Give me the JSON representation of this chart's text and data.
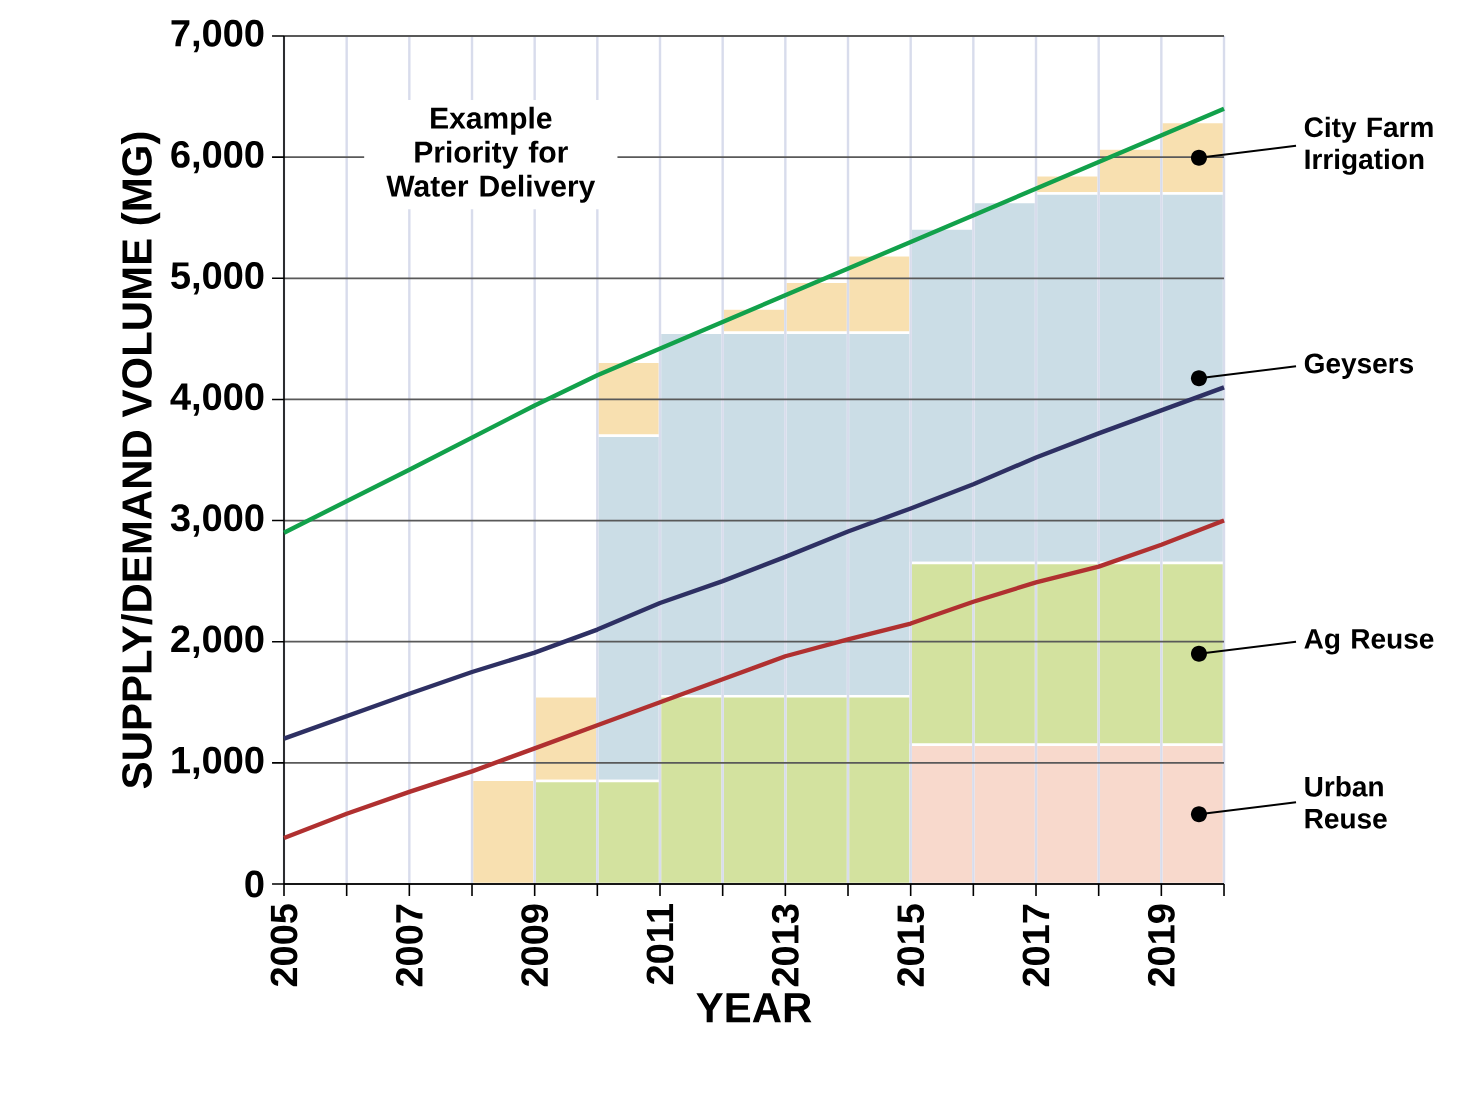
{
  "chart_data": {
    "type": "bar",
    "stacked": true,
    "xlabel": "YEAR",
    "ylabel": "SUPPLY/DEMAND VOLUME (MG)",
    "grid": true,
    "xlim": [
      2005,
      2020
    ],
    "xticks": [
      {
        "value": 2005,
        "label": "2005"
      },
      {
        "value": 2006,
        "label": null
      },
      {
        "value": 2007,
        "label": "2007"
      },
      {
        "value": 2008,
        "label": null
      },
      {
        "value": 2009,
        "label": "2009"
      },
      {
        "value": 2010,
        "label": null
      },
      {
        "value": 2011,
        "label": "2011"
      },
      {
        "value": 2012,
        "label": null
      },
      {
        "value": 2013,
        "label": "2013"
      },
      {
        "value": 2014,
        "label": null
      },
      {
        "value": 2015,
        "label": "2015"
      },
      {
        "value": 2016,
        "label": null
      },
      {
        "value": 2017,
        "label": "2017"
      },
      {
        "value": 2018,
        "label": null
      },
      {
        "value": 2019,
        "label": "2019"
      },
      {
        "value": 2020,
        "label": null
      }
    ],
    "ylim": [
      0,
      7000
    ],
    "yticks": [
      {
        "value": 0,
        "label": "0"
      },
      {
        "value": 1000,
        "label": "1,000"
      },
      {
        "value": 2000,
        "label": "2,000"
      },
      {
        "value": 3000,
        "label": "3,000"
      },
      {
        "value": 4000,
        "label": "4,000"
      },
      {
        "value": 5000,
        "label": "5,000"
      },
      {
        "value": 6000,
        "label": "6,000"
      },
      {
        "value": 7000,
        "label": "7,000"
      }
    ],
    "annotations": [
      "Example Priority for Water Delivery"
    ],
    "series": [
      {
        "name": "Urban Reuse",
        "color": "#f8d9cc",
        "x": [
          2008.5,
          2009.5,
          2010.5,
          2011.5,
          2012.5,
          2013.5,
          2014.5,
          2015.5,
          2016.5,
          2017.5,
          2018.5,
          2019.5
        ],
        "values": [
          0,
          0,
          0,
          0,
          0,
          0,
          0,
          1150,
          1150,
          1150,
          1150,
          1150
        ]
      },
      {
        "name": "Ag Reuse",
        "color": "#d3e29f",
        "x": [
          2008.5,
          2009.5,
          2010.5,
          2011.5,
          2012.5,
          2013.5,
          2014.5,
          2015.5,
          2016.5,
          2017.5,
          2018.5,
          2019.5
        ],
        "values": [
          0,
          850,
          850,
          1550,
          1550,
          1550,
          1550,
          1500,
          1500,
          1500,
          1500,
          1500
        ]
      },
      {
        "name": "Geysers",
        "color": "#cbdde6",
        "x": [
          2008.5,
          2009.5,
          2010.5,
          2011.5,
          2012.5,
          2013.5,
          2014.5,
          2015.5,
          2016.5,
          2017.5,
          2018.5,
          2019.5
        ],
        "values": [
          0,
          0,
          2850,
          3000,
          3000,
          3000,
          3000,
          2760,
          2980,
          3050,
          3050,
          3050
        ]
      },
      {
        "name": "City Farm Irrigation",
        "color": "#f8e0b0",
        "x": [
          2008.5,
          2009.5,
          2010.5,
          2011.5,
          2012.5,
          2013.5,
          2014.5,
          2015.5,
          2016.5,
          2017.5,
          2018.5,
          2019.5
        ],
        "values": [
          860,
          700,
          610,
          0,
          200,
          420,
          640,
          0,
          0,
          150,
          370,
          590
        ]
      },
      {
        "type": "line",
        "color": "#12a14b",
        "x": [
          2005,
          2007,
          2009,
          2010,
          2015,
          2020
        ],
        "values": [
          2900,
          3420,
          3950,
          4200,
          5300,
          6400
        ]
      },
      {
        "type": "line",
        "color": "#2e3063",
        "x": [
          2005,
          2007,
          2008,
          2009,
          2010,
          2011,
          2012,
          2013,
          2014,
          2015,
          2016,
          2017,
          2018,
          2019,
          2020
        ],
        "values": [
          1200,
          1570,
          1750,
          1910,
          2100,
          2320,
          2500,
          2700,
          2910,
          3100,
          3300,
          3520,
          3720,
          3910,
          4100
        ]
      },
      {
        "type": "line",
        "color": "#b03030",
        "x": [
          2005,
          2006,
          2007,
          2008,
          2009,
          2010,
          2011,
          2012,
          2013,
          2014,
          2015,
          2016,
          2017,
          2018,
          2019,
          2020
        ],
        "values": [
          380,
          580,
          760,
          930,
          1120,
          1310,
          1500,
          1690,
          1880,
          2020,
          2150,
          2330,
          2490,
          2620,
          2800,
          3000
        ]
      }
    ]
  }
}
